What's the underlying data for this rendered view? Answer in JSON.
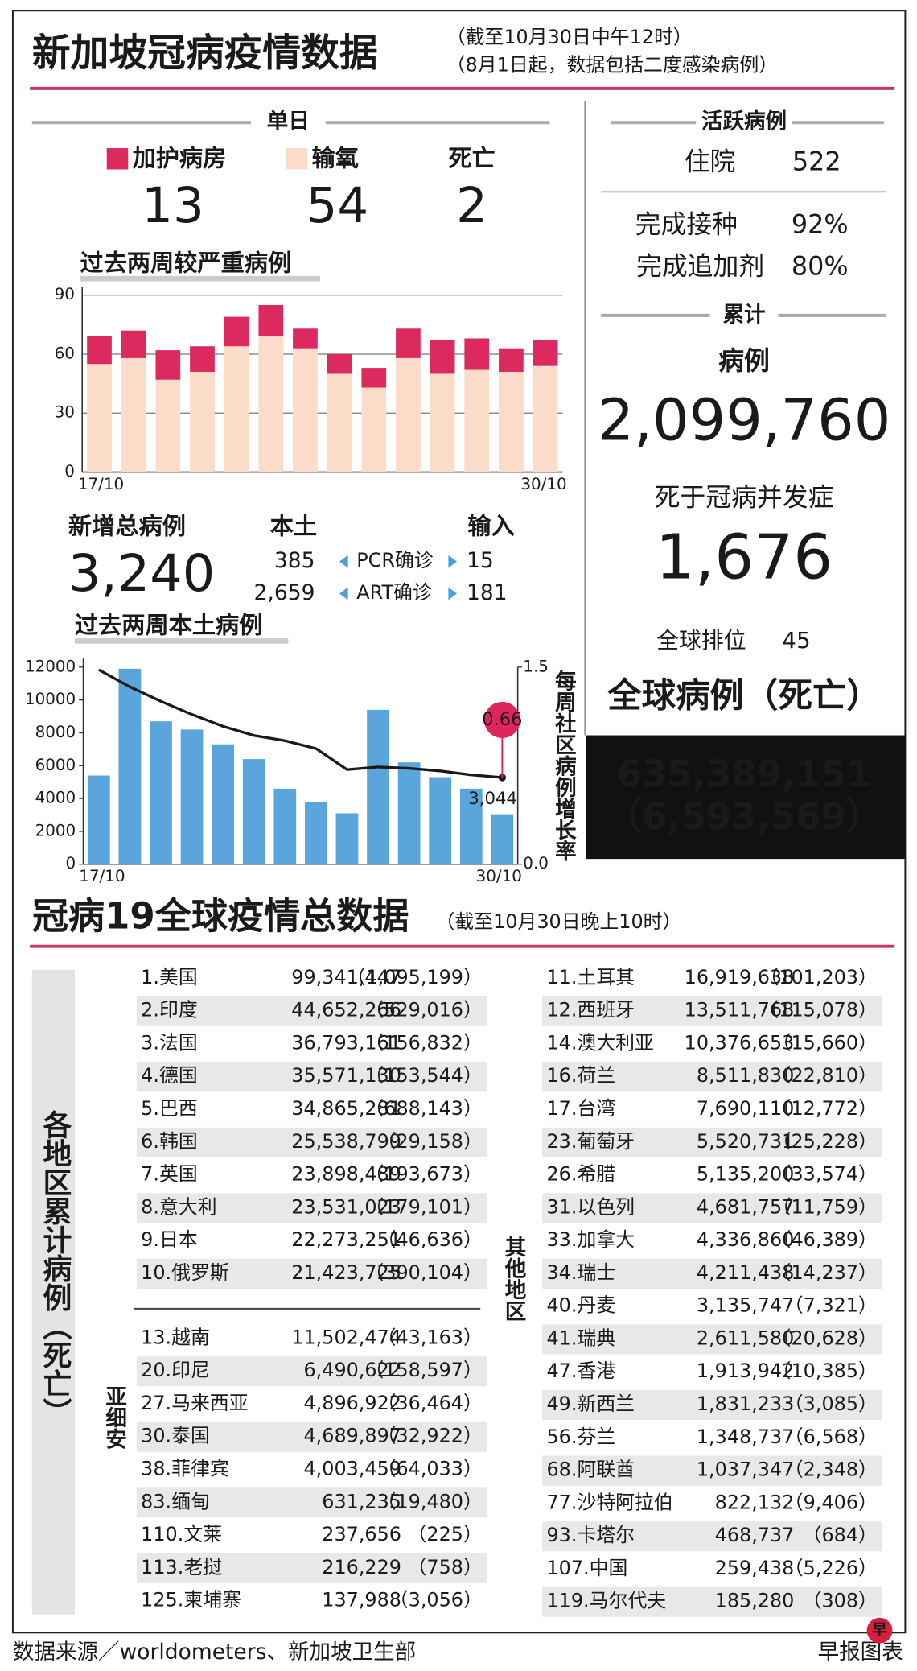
{
  "header": {
    "title": "新加坡冠病疫情数据",
    "note1": "（截至10月30日中午12时）",
    "note2": "（8月1日起，数据包括二度感染病例）"
  },
  "daily": {
    "heading": "单日",
    "icu": "13",
    "oxygen": "54",
    "death_label": "死亡",
    "deaths": "2"
  },
  "chart_data": [
    {
      "type": "bar",
      "stacked": true,
      "title": "过去两周较严重病例",
      "categories": [
        "17/10",
        null,
        null,
        null,
        null,
        null,
        null,
        null,
        null,
        null,
        null,
        null,
        null,
        "30/10"
      ],
      "series": [
        {
          "name": "加护病房",
          "color": "#dc2a5f",
          "values": [
            14,
            14,
            15,
            13,
            15,
            16,
            10,
            10,
            10,
            15,
            17,
            16,
            12,
            13
          ]
        },
        {
          "name": "输氧",
          "color": "#fbdcc9",
          "values": [
            55,
            58,
            47,
            51,
            64,
            69,
            63,
            50,
            43,
            58,
            50,
            52,
            51,
            54
          ]
        }
      ],
      "ylim": [
        0,
        90
      ],
      "yticks": [
        0,
        30,
        60,
        90
      ],
      "grid": true
    },
    {
      "type": "bar",
      "title": "过去两周本土病例",
      "y2label": "每周社区病例增长率",
      "categories": [
        "17/10",
        null,
        null,
        null,
        null,
        null,
        null,
        null,
        null,
        null,
        null,
        null,
        null,
        "30/10"
      ],
      "series": [
        {
          "color": "#5aa6dc",
          "values": [
            5400,
            11900,
            8700,
            8200,
            7300,
            6400,
            4600,
            3800,
            3100,
            9400,
            6200,
            5300,
            4600,
            3044
          ],
          "value_labels": [
            null,
            null,
            null,
            null,
            null,
            null,
            null,
            null,
            null,
            null,
            null,
            null,
            null,
            "3,044"
          ]
        },
        {
          "type": "line",
          "axis": "y2",
          "color": "#1a1a1a",
          "values": [
            1.48,
            1.35,
            1.24,
            1.14,
            1.05,
            0.98,
            0.94,
            0.88,
            0.72,
            0.74,
            0.73,
            0.71,
            0.68,
            0.66
          ]
        }
      ],
      "ylim": [
        0,
        12000
      ],
      "yticks": [
        0,
        2000,
        4000,
        6000,
        8000,
        10000,
        12000
      ],
      "y2lim": [
        0,
        1.5
      ],
      "y2ticks": [
        {
          "value": 0,
          "label": "0.0"
        },
        1.5
      ],
      "grid": false
    }
  ],
  "new_cases": {
    "label": "新增总病例",
    "total": "3,240",
    "local_label": "本土",
    "imported_label": "输入",
    "rows": [
      [
        "385",
        "PCR确诊",
        "15"
      ],
      [
        "2,659",
        "ART确诊",
        "181"
      ]
    ]
  },
  "active": {
    "heading": "活跃病例",
    "hospital_label": "住院",
    "hospital": "522",
    "vacc_label": "完成接种",
    "vacc": "92%",
    "booster_label": "完成追加剂",
    "booster": "80%"
  },
  "cumulative": {
    "heading": "累计",
    "cases_label": "病例",
    "cases": "2,099,760",
    "deaths_label": "死于冠病并发症",
    "deaths": "1,676",
    "rank_label": "全球排位",
    "rank": "45"
  },
  "global": {
    "title": "全球病例（死亡）",
    "cases": "635,389,151",
    "deaths": "（6,593,569）"
  },
  "table": {
    "title": "冠病19全球疫情总数据",
    "note": "（截至10月30日晚上10时）",
    "side_label": "各地区累计病例（死亡）",
    "asean_label": "亚细安",
    "others_label": "其他地区",
    "top": [
      [
        "1.美国",
        "99,341,447",
        "（1,095,199）"
      ],
      [
        "2.印度",
        "44,652,266",
        "（529,016）"
      ],
      [
        "3.法国",
        "36,793,161",
        "（156,832）"
      ],
      [
        "4.德国",
        "35,571,130",
        "（153,544）"
      ],
      [
        "5.巴西",
        "34,865,281",
        "（688,143）"
      ],
      [
        "6.韩国",
        "25,538,799",
        "（29,158）"
      ],
      [
        "7.英国",
        "23,898,489",
        "（193,673）"
      ],
      [
        "8.意大利",
        "23,531,023",
        "（179,101）"
      ],
      [
        "9.日本",
        "22,273,251",
        "（46,636）"
      ],
      [
        "10.俄罗斯",
        "21,423,725",
        "（390,104）"
      ]
    ],
    "asean": [
      [
        "13.越南",
        "11,502,474",
        "（43,163）"
      ],
      [
        "20.印尼",
        "6,490,622",
        "（158,597）"
      ],
      [
        "27.马来西亚",
        "4,896,922",
        "（36,464）"
      ],
      [
        "30.泰国",
        "4,689,897",
        "（32,922）"
      ],
      [
        "38.菲律宾",
        "4,003,459",
        "（64,033）"
      ],
      [
        "83.缅甸",
        "631,235",
        "（19,480）"
      ],
      [
        "110.文莱",
        "237,656",
        "（225）"
      ],
      [
        "113.老挝",
        "216,229",
        "（758）"
      ],
      [
        "125.柬埔寨",
        "137,988",
        "（3,056）"
      ]
    ],
    "others": [
      [
        "11.土耳其",
        "16,919,638",
        "（101,203）"
      ],
      [
        "12.西班牙",
        "13,511,768",
        "（115,078）"
      ],
      [
        "14.澳大利亚",
        "10,376,653",
        "（15,660）"
      ],
      [
        "16.荷兰",
        "8,511,830",
        "（22,810）"
      ],
      [
        "17.台湾",
        "7,690,110",
        "（12,772）"
      ],
      [
        "23.葡萄牙",
        "5,520,731",
        "（25,228）"
      ],
      [
        "26.希腊",
        "5,135,200",
        "（33,574）"
      ],
      [
        "31.以色列",
        "4,681,757",
        "（11,759）"
      ],
      [
        "33.加拿大",
        "4,336,860",
        "（46,389）"
      ],
      [
        "34.瑞士",
        "4,211,438",
        "（14,237）"
      ],
      [
        "40.丹麦",
        "3,135,747",
        "（7,321）"
      ],
      [
        "41.瑞典",
        "2,611,580",
        "（20,628）"
      ],
      [
        "47.香港",
        "1,913,942",
        "（10,385）"
      ],
      [
        "49.新西兰",
        "1,831,233",
        "（3,085）"
      ],
      [
        "56.芬兰",
        "1,348,737",
        "（6,568）"
      ],
      [
        "68.阿联酋",
        "1,037,347",
        "（2,348）"
      ],
      [
        "77.沙特阿拉伯",
        "822,132",
        "（9,406）"
      ],
      [
        "93.卡塔尔",
        "468,737",
        "（684）"
      ],
      [
        "107.中国",
        "259,438",
        "（5,226）"
      ],
      [
        "119.马尔代夫",
        "185,280",
        "（308）"
      ]
    ]
  },
  "footer": {
    "source": "数据来源／worldometers、新加坡卫生部",
    "brand": "早报图表",
    "logo": "早"
  }
}
